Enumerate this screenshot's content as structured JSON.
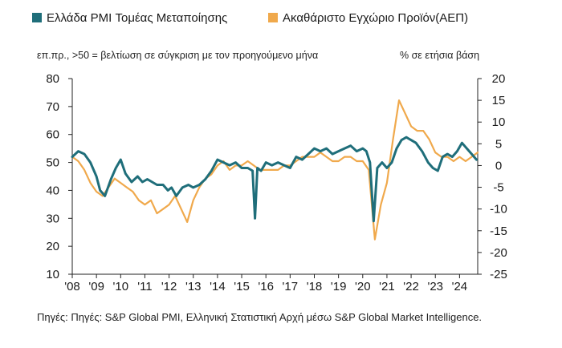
{
  "legend": {
    "items": [
      {
        "label": "Ελλάδα PMI Τομέας Μεταποίησης",
        "color": "#1f6e7a"
      },
      {
        "label": "Ακαθάριστο Εγχώριο Προϊόν(ΑΕΠ)",
        "color": "#f0a94c"
      }
    ]
  },
  "notes": {
    "left_axis": "επ.πρ., >50 = βελτίωση σε σύγκριση με τον προηγούμενο μήνα",
    "right_axis": "% σε ετήσια βάση"
  },
  "source": "Πηγές: Πηγές: S&P Global PMI, Ελληνική Στατιστική Αρχή μέσω S&P Global Market Intelligence.",
  "chart_data": {
    "type": "line",
    "x_tick_labels": [
      "'08",
      "'09",
      "'10",
      "'11",
      "'12",
      "'13",
      "'14",
      "'15",
      "'16",
      "'17",
      "'18",
      "'19",
      "'20",
      "'21",
      "'22",
      "'23",
      "'24"
    ],
    "xlim": [
      2008,
      2024.75
    ],
    "y_left": {
      "ticks": [
        10,
        20,
        30,
        40,
        50,
        60,
        70,
        80
      ],
      "lim": [
        10,
        80
      ]
    },
    "y_right": {
      "ticks": [
        -25,
        -20,
        -15,
        -10,
        -5,
        0,
        5,
        10,
        15,
        20
      ],
      "lim": [
        -25,
        20
      ]
    },
    "grid": false,
    "legend_position": "top",
    "series": [
      {
        "name": "Ελλάδα PMI Τομέας Μεταποίησης",
        "axis": "left",
        "color": "#1f6e7a",
        "x": [
          2008.0,
          2008.25,
          2008.5,
          2008.75,
          2009.0,
          2009.15,
          2009.35,
          2009.6,
          2009.8,
          2010.0,
          2010.2,
          2010.45,
          2010.7,
          2010.9,
          2011.1,
          2011.3,
          2011.5,
          2011.75,
          2011.95,
          2012.1,
          2012.3,
          2012.55,
          2012.8,
          2013.0,
          2013.25,
          2013.5,
          2013.75,
          2014.0,
          2014.25,
          2014.5,
          2014.75,
          2015.0,
          2015.25,
          2015.45,
          2015.55,
          2015.65,
          2015.8,
          2016.0,
          2016.25,
          2016.5,
          2016.75,
          2017.0,
          2017.25,
          2017.5,
          2017.75,
          2018.0,
          2018.25,
          2018.5,
          2018.75,
          2019.0,
          2019.25,
          2019.5,
          2019.75,
          2020.0,
          2020.15,
          2020.3,
          2020.45,
          2020.6,
          2020.8,
          2021.0,
          2021.2,
          2021.4,
          2021.6,
          2021.8,
          2022.0,
          2022.2,
          2022.45,
          2022.7,
          2022.9,
          2023.1,
          2023.3,
          2023.5,
          2023.7,
          2023.9,
          2024.1,
          2024.3,
          2024.5,
          2024.7
        ],
        "values": [
          52,
          54,
          53,
          50,
          45,
          40,
          38,
          44,
          48,
          51,
          46,
          43,
          45,
          43,
          44,
          43,
          42,
          42,
          40,
          41,
          38,
          41,
          42,
          41,
          42,
          44,
          47,
          51,
          50,
          49,
          50,
          48,
          48,
          47,
          30,
          48,
          47,
          50,
          49,
          50,
          49,
          48,
          52,
          51,
          53,
          55,
          54,
          55,
          53,
          54,
          55,
          56,
          54,
          55,
          54,
          50,
          29,
          48,
          50,
          48,
          50,
          55,
          58,
          59,
          58,
          57,
          54,
          50,
          48,
          47,
          52,
          53,
          52,
          54,
          57,
          55,
          53,
          51
        ]
      },
      {
        "name": "Ακαθάριστο Εγχώριο Προϊόν(ΑΕΠ)",
        "axis": "right",
        "color": "#f0a94c",
        "x": [
          2008.0,
          2008.25,
          2008.5,
          2008.75,
          2009.0,
          2009.25,
          2009.5,
          2009.75,
          2010.0,
          2010.25,
          2010.5,
          2010.75,
          2011.0,
          2011.25,
          2011.5,
          2011.75,
          2012.0,
          2012.25,
          2012.5,
          2012.75,
          2013.0,
          2013.25,
          2013.5,
          2013.75,
          2014.0,
          2014.25,
          2014.5,
          2014.75,
          2015.0,
          2015.25,
          2015.5,
          2015.75,
          2016.0,
          2016.25,
          2016.5,
          2016.75,
          2017.0,
          2017.25,
          2017.5,
          2017.75,
          2018.0,
          2018.25,
          2018.5,
          2018.75,
          2019.0,
          2019.25,
          2019.5,
          2019.75,
          2020.0,
          2020.25,
          2020.5,
          2020.75,
          2021.0,
          2021.25,
          2021.5,
          2021.75,
          2022.0,
          2022.25,
          2022.5,
          2022.75,
          2023.0,
          2023.25,
          2023.5,
          2023.75,
          2024.0,
          2024.25,
          2024.5,
          2024.75
        ],
        "values": [
          2,
          1,
          -1,
          -4,
          -6,
          -7,
          -5,
          -3,
          -4,
          -5,
          -6,
          -8,
          -9,
          -8,
          -11,
          -10,
          -9,
          -7,
          -10,
          -13,
          -8,
          -5,
          -3,
          -2,
          0,
          1,
          -1,
          0,
          0,
          1,
          0,
          -1,
          -1,
          -1,
          -1,
          0,
          0,
          1,
          2,
          2,
          2,
          3,
          2,
          1,
          1,
          2,
          2,
          1,
          1,
          -1,
          -17,
          -9,
          -4,
          6,
          15,
          12,
          9,
          8,
          8,
          6,
          3,
          2,
          2,
          1,
          2,
          1,
          2,
          3
        ]
      }
    ]
  }
}
